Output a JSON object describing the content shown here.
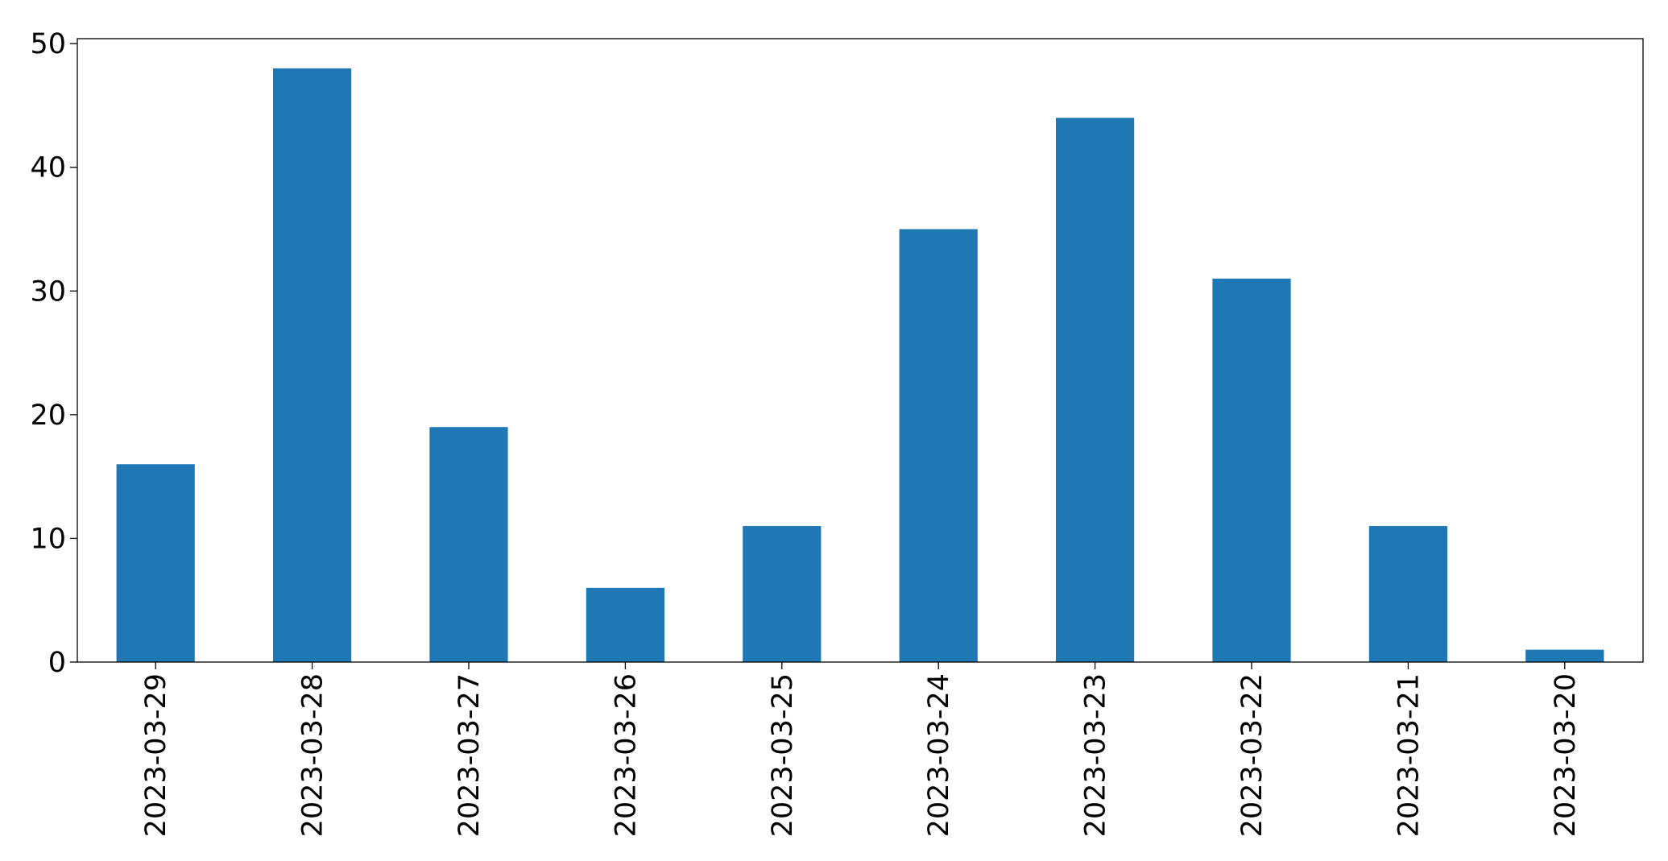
{
  "chart_data": {
    "type": "bar",
    "categories": [
      "2023-03-29",
      "2023-03-28",
      "2023-03-27",
      "2023-03-26",
      "2023-03-25",
      "2023-03-24",
      "2023-03-23",
      "2023-03-22",
      "2023-03-21",
      "2023-03-20"
    ],
    "values": [
      16,
      48,
      19,
      6,
      11,
      35,
      44,
      31,
      11,
      1
    ],
    "color": "#1f77b4",
    "ylim": [
      0,
      50.4
    ],
    "yticks": [
      0,
      10,
      20,
      30,
      40,
      50
    ],
    "grid": false
  }
}
